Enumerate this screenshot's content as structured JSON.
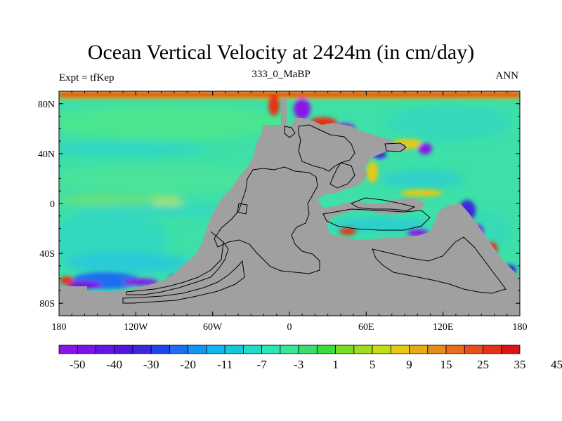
{
  "header": {
    "title": "Ocean Vertical Velocity at 2424m (in cm/day)",
    "subtitle": "333_0_MaBP",
    "left_label": "Expt = tfKep",
    "right_label": "ANN"
  },
  "map": {
    "lon_range": [
      -180,
      180
    ],
    "lat_range": [
      -90,
      90
    ],
    "x_ticks": [
      {
        "lon": -180,
        "label": "180"
      },
      {
        "lon": -120,
        "label": "120W"
      },
      {
        "lon": -60,
        "label": "60W"
      },
      {
        "lon": 0,
        "label": "0"
      },
      {
        "lon": 60,
        "label": "60E"
      },
      {
        "lon": 120,
        "label": "120E"
      },
      {
        "lon": 180,
        "label": "180"
      }
    ],
    "y_ticks": [
      {
        "lat": 80,
        "label": "80N"
      },
      {
        "lat": 40,
        "label": "40N"
      },
      {
        "lat": 0,
        "label": "0"
      },
      {
        "lat": -40,
        "label": "40S"
      },
      {
        "lat": -80,
        "label": "80S"
      }
    ],
    "land_color": "#a0a0a0",
    "ocean_base_color": "#3ee0a8"
  },
  "colorbar": {
    "labels": [
      "-50",
      "-40",
      "-30",
      "-20",
      "-11",
      "-7",
      "-3",
      "1",
      "5",
      "9",
      "15",
      "25",
      "35",
      "45"
    ],
    "colors": [
      "#8a14e6",
      "#7814e6",
      "#6414e6",
      "#5014dc",
      "#3c28dc",
      "#1e46e6",
      "#1e6ef0",
      "#1496f0",
      "#14b4f0",
      "#14c8dc",
      "#1edcc8",
      "#2ae6b4",
      "#36e696",
      "#3cdc6e",
      "#3cdc3c",
      "#78dc28",
      "#a0dc1e",
      "#c8dc14",
      "#e6c814",
      "#e6aa14",
      "#e68c1e",
      "#e66e1e",
      "#e6501e",
      "#e63214",
      "#dc1414"
    ]
  }
}
